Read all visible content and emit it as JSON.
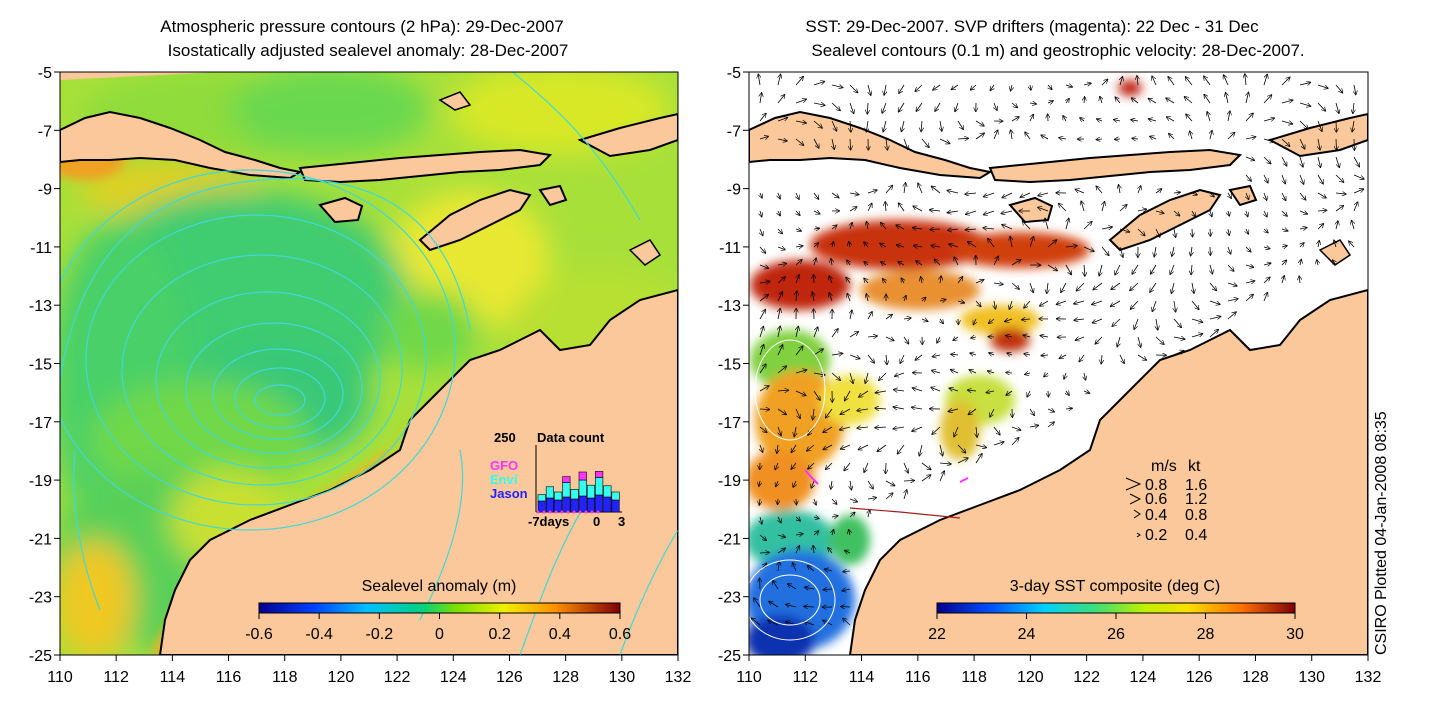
{
  "left_panel": {
    "title_line1": "Atmospheric pressure contours (2 hPa): 29-Dec-2007",
    "title_line2": "Isostatically adjusted sealevel anomaly: 28-Dec-2007",
    "x_ticks": [
      "110",
      "112",
      "114",
      "116",
      "118",
      "120",
      "122",
      "124",
      "126",
      "128",
      "130",
      "132"
    ],
    "y_ticks": [
      "-5",
      "-7",
      "-9",
      "-11",
      "-13",
      "-15",
      "-17",
      "-19",
      "-21",
      "-23",
      "-25"
    ],
    "colorbar": {
      "label": "Sealevel anomaly (m)",
      "ticks": [
        "-0.6",
        "-0.4",
        "-0.2",
        "0",
        "0.2",
        "0.4",
        "0.6"
      ]
    },
    "data_count": {
      "top_value": "250",
      "title": "Data count",
      "legend": [
        "GFO",
        "Envi",
        "Jason"
      ],
      "legend_colors": [
        "#ff33ff",
        "#33ffee",
        "#2222ff"
      ],
      "x_ticks": [
        "-7days",
        "0",
        "3"
      ]
    }
  },
  "right_panel": {
    "title_line1": "SST: 29-Dec-2007. SVP drifters (magenta): 22 Dec - 31 Dec",
    "title_line2": "Sealevel contours (0.1 m) and geostrophic velocity: 28-Dec-2007.",
    "x_ticks": [
      "110",
      "112",
      "114",
      "116",
      "118",
      "120",
      "122",
      "124",
      "126",
      "128",
      "130",
      "132"
    ],
    "y_ticks": [
      "-5",
      "-7",
      "-9",
      "-11",
      "-13",
      "-15",
      "-17",
      "-19",
      "-21",
      "-23",
      "-25"
    ],
    "colorbar": {
      "label": "3-day SST composite (deg C)",
      "ticks": [
        "22",
        "24",
        "26",
        "28",
        "30"
      ]
    },
    "velocity_legend": {
      "header_ms": "m/s",
      "header_kt": "kt",
      "rows": [
        {
          "ms": "0.8",
          "kt": "1.6"
        },
        {
          "ms": "0.6",
          "kt": "1.2"
        },
        {
          "ms": "0.4",
          "kt": "0.8"
        },
        {
          "ms": "0.2",
          "kt": "0.4"
        }
      ]
    }
  },
  "stamp": "CSIRO Plotted 04-Jan-2008 08:35",
  "colors": {
    "land": "#fac89a",
    "coast": "#000000",
    "contour": "#40d8d8"
  }
}
